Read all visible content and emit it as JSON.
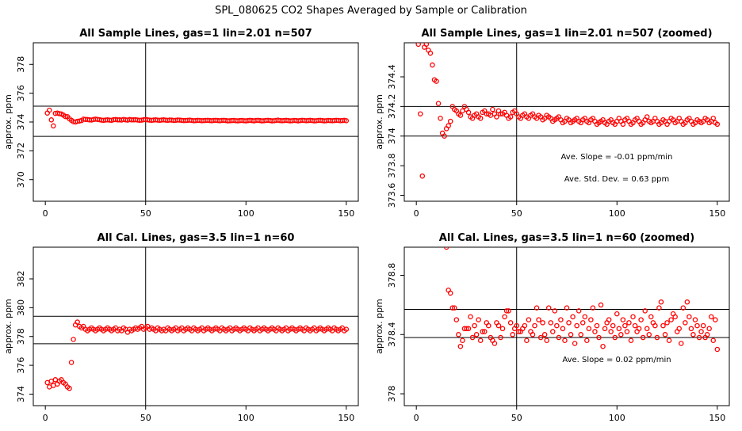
{
  "suptitle": "SPL_080625  CO2 Shapes Averaged by Sample or Calibration",
  "colors": {
    "points": "#ff0000",
    "lines": "#000000",
    "text": "#000000"
  },
  "chart_data": [
    {
      "type": "scatter",
      "title": "All Sample Lines, gas=1 lin=2.01 n=507",
      "xlabel": "",
      "ylabel": "approx. ppm",
      "xlim": [
        -6,
        156
      ],
      "ylim": [
        368.5,
        379.5
      ],
      "xticks": [
        0,
        50,
        100,
        150
      ],
      "yticks": [
        370,
        372,
        374,
        376,
        378
      ],
      "hlines": [
        373,
        375.1
      ],
      "vlines": [
        50
      ],
      "annotations": [],
      "x": [
        1,
        2,
        3,
        4,
        5,
        6,
        7,
        8,
        9,
        10,
        11,
        12,
        13,
        14,
        15,
        16,
        17,
        18,
        19,
        20,
        21,
        22,
        23,
        24,
        25,
        26,
        27,
        28,
        29,
        30,
        31,
        32,
        33,
        34,
        35,
        36,
        37,
        38,
        39,
        40,
        41,
        42,
        43,
        44,
        45,
        46,
        47,
        48,
        49,
        50,
        51,
        52,
        53,
        54,
        55,
        56,
        57,
        58,
        59,
        60,
        61,
        62,
        63,
        64,
        65,
        66,
        67,
        68,
        69,
        70,
        71,
        72,
        73,
        74,
        75,
        76,
        77,
        78,
        79,
        80,
        81,
        82,
        83,
        84,
        85,
        86,
        87,
        88,
        89,
        90,
        91,
        92,
        93,
        94,
        95,
        96,
        97,
        98,
        99,
        100,
        101,
        102,
        103,
        104,
        105,
        106,
        107,
        108,
        109,
        110,
        111,
        112,
        113,
        114,
        115,
        116,
        117,
        118,
        119,
        120,
        121,
        122,
        123,
        124,
        125,
        126,
        127,
        128,
        129,
        130,
        131,
        132,
        133,
        134,
        135,
        136,
        137,
        138,
        139,
        140,
        141,
        142,
        143,
        144,
        145,
        146,
        147,
        148,
        149,
        150
      ],
      "y": [
        374.62,
        374.82,
        374.15,
        373.73,
        374.6,
        374.62,
        374.58,
        374.56,
        374.48,
        374.38,
        374.37,
        374.22,
        374.12,
        374.02,
        374.0,
        374.05,
        374.07,
        374.1,
        374.2,
        374.18,
        374.17,
        374.15,
        374.14,
        374.17,
        374.2,
        374.18,
        374.16,
        374.13,
        374.12,
        374.14,
        374.15,
        374.13,
        374.12,
        374.16,
        374.17,
        374.15,
        374.15,
        374.14,
        374.18,
        374.15,
        374.13,
        374.17,
        374.15,
        374.15,
        374.16,
        374.14,
        374.12,
        374.13,
        374.16,
        374.17,
        374.15,
        374.13,
        374.12,
        374.14,
        374.15,
        374.13,
        374.12,
        374.14,
        374.15,
        374.13,
        374.12,
        374.14,
        374.13,
        374.11,
        374.12,
        374.14,
        374.13,
        374.12,
        374.1,
        374.11,
        374.12,
        374.13,
        374.11,
        374.09,
        374.1,
        374.12,
        374.11,
        374.09,
        374.1,
        374.11,
        374.12,
        374.1,
        374.09,
        374.11,
        374.12,
        374.1,
        374.09,
        374.11,
        374.12,
        374.1,
        374.08,
        374.09,
        374.1,
        374.11,
        374.09,
        374.08,
        374.1,
        374.11,
        374.09,
        374.08,
        374.1,
        374.12,
        374.1,
        374.08,
        374.11,
        374.12,
        374.1,
        374.08,
        374.09,
        374.11,
        374.12,
        374.1,
        374.08,
        374.09,
        374.11,
        374.13,
        374.1,
        374.09,
        374.1,
        374.12,
        374.1,
        374.08,
        374.09,
        374.11,
        374.1,
        374.08,
        374.1,
        374.12,
        374.11,
        374.09,
        374.1,
        374.12,
        374.1,
        374.08,
        374.09,
        374.11,
        374.12,
        374.1,
        374.08,
        374.09,
        374.11,
        374.1,
        374.09,
        374.1,
        374.12,
        374.11,
        374.09,
        374.1,
        374.12,
        374.09
      ]
    },
    {
      "type": "scatter",
      "title": "All Sample Lines, gas=1 lin=2.01 n=507 (zoomed)",
      "xlabel": "",
      "ylabel": "approx. ppm",
      "xlim": [
        -6,
        156
      ],
      "ylim": [
        373.56,
        374.63
      ],
      "xticks": [
        0,
        50,
        100,
        150
      ],
      "yticks": [
        373.6,
        373.8,
        374.0,
        374.2,
        374.4
      ],
      "hlines": [
        374.0,
        374.2
      ],
      "vlines": [
        50
      ],
      "annotations": [
        "Ave. Slope =  -0.01  ppm/min",
        "Ave. Std. Dev. =  0.63  ppm"
      ],
      "x": [
        1,
        2,
        3,
        4,
        5,
        6,
        7,
        8,
        9,
        10,
        11,
        12,
        13,
        14,
        15,
        16,
        17,
        18,
        19,
        20,
        21,
        22,
        23,
        24,
        25,
        26,
        27,
        28,
        29,
        30,
        31,
        32,
        33,
        34,
        35,
        36,
        37,
        38,
        39,
        40,
        41,
        42,
        43,
        44,
        45,
        46,
        47,
        48,
        49,
        50,
        51,
        52,
        53,
        54,
        55,
        56,
        57,
        58,
        59,
        60,
        61,
        62,
        63,
        64,
        65,
        66,
        67,
        68,
        69,
        70,
        71,
        72,
        73,
        74,
        75,
        76,
        77,
        78,
        79,
        80,
        81,
        82,
        83,
        84,
        85,
        86,
        87,
        88,
        89,
        90,
        91,
        92,
        93,
        94,
        95,
        96,
        97,
        98,
        99,
        100,
        101,
        102,
        103,
        104,
        105,
        106,
        107,
        108,
        109,
        110,
        111,
        112,
        113,
        114,
        115,
        116,
        117,
        118,
        119,
        120,
        121,
        122,
        123,
        124,
        125,
        126,
        127,
        128,
        129,
        130,
        131,
        132,
        133,
        134,
        135,
        136,
        137,
        138,
        139,
        140,
        141,
        142,
        143,
        144,
        145,
        146,
        147,
        148,
        149,
        150
      ],
      "y": [
        374.62,
        374.15,
        373.73,
        374.6,
        374.62,
        374.58,
        374.56,
        374.48,
        374.38,
        374.37,
        374.22,
        374.12,
        374.02,
        374.0,
        374.05,
        374.07,
        374.1,
        374.2,
        374.18,
        374.17,
        374.15,
        374.14,
        374.17,
        374.2,
        374.18,
        374.16,
        374.13,
        374.12,
        374.14,
        374.15,
        374.13,
        374.12,
        374.16,
        374.17,
        374.15,
        374.15,
        374.14,
        374.18,
        374.15,
        374.13,
        374.17,
        374.15,
        374.15,
        374.16,
        374.14,
        374.12,
        374.13,
        374.16,
        374.17,
        374.15,
        374.13,
        374.12,
        374.14,
        374.15,
        374.13,
        374.12,
        374.14,
        374.15,
        374.13,
        374.12,
        374.14,
        374.13,
        374.11,
        374.12,
        374.14,
        374.13,
        374.12,
        374.1,
        374.11,
        374.12,
        374.13,
        374.11,
        374.09,
        374.1,
        374.12,
        374.11,
        374.09,
        374.1,
        374.11,
        374.12,
        374.1,
        374.09,
        374.11,
        374.12,
        374.1,
        374.09,
        374.11,
        374.12,
        374.1,
        374.08,
        374.09,
        374.1,
        374.11,
        374.09,
        374.08,
        374.1,
        374.11,
        374.09,
        374.08,
        374.1,
        374.12,
        374.1,
        374.08,
        374.11,
        374.12,
        374.1,
        374.08,
        374.09,
        374.11,
        374.12,
        374.1,
        374.08,
        374.09,
        374.11,
        374.13,
        374.1,
        374.09,
        374.1,
        374.12,
        374.1,
        374.08,
        374.09,
        374.11,
        374.1,
        374.08,
        374.1,
        374.12,
        374.11,
        374.09,
        374.1,
        374.12,
        374.1,
        374.08,
        374.09,
        374.11,
        374.12,
        374.1,
        374.08,
        374.09,
        374.11,
        374.1,
        374.09,
        374.1,
        374.12,
        374.11,
        374.09,
        374.1,
        374.12,
        374.09,
        374.08
      ]
    },
    {
      "type": "scatter",
      "title": "All Cal. Lines, gas=3.5 lin=1 n=60",
      "xlabel": "",
      "ylabel": "approx. ppm",
      "xlim": [
        -6,
        156
      ],
      "ylim": [
        373.2,
        384.2
      ],
      "xticks": [
        0,
        50,
        100,
        150
      ],
      "yticks": [
        374,
        376,
        378,
        380,
        382
      ],
      "hlines": [
        377.5,
        379.4
      ],
      "vlines": [
        50
      ],
      "annotations": [],
      "x": [
        1,
        2,
        3,
        4,
        5,
        6,
        7,
        8,
        9,
        10,
        11,
        12,
        13,
        14,
        15,
        16,
        17,
        18,
        19,
        20,
        21,
        22,
        23,
        24,
        25,
        26,
        27,
        28,
        29,
        30,
        31,
        32,
        33,
        34,
        35,
        36,
        37,
        38,
        39,
        40,
        41,
        42,
        43,
        44,
        45,
        46,
        47,
        48,
        49,
        50,
        51,
        52,
        53,
        54,
        55,
        56,
        57,
        58,
        59,
        60,
        61,
        62,
        63,
        64,
        65,
        66,
        67,
        68,
        69,
        70,
        71,
        72,
        73,
        74,
        75,
        76,
        77,
        78,
        79,
        80,
        81,
        82,
        83,
        84,
        85,
        86,
        87,
        88,
        89,
        90,
        91,
        92,
        93,
        94,
        95,
        96,
        97,
        98,
        99,
        100,
        101,
        102,
        103,
        104,
        105,
        106,
        107,
        108,
        109,
        110,
        111,
        112,
        113,
        114,
        115,
        116,
        117,
        118,
        119,
        120,
        121,
        122,
        123,
        124,
        125,
        126,
        127,
        128,
        129,
        130,
        131,
        132,
        133,
        134,
        135,
        136,
        137,
        138,
        139,
        140,
        141,
        142,
        143,
        144,
        145,
        146,
        147,
        148,
        149,
        150
      ],
      "y": [
        374.8,
        374.5,
        374.9,
        374.6,
        375.0,
        374.7,
        374.9,
        375.0,
        374.8,
        374.7,
        374.5,
        374.4,
        376.2,
        377.8,
        378.8,
        379.0,
        378.7,
        378.6,
        378.7,
        378.5,
        378.4,
        378.5,
        378.6,
        378.5,
        378.4,
        378.5,
        378.6,
        378.5,
        378.4,
        378.5,
        378.6,
        378.5,
        378.4,
        378.5,
        378.6,
        378.4,
        378.5,
        378.4,
        378.6,
        378.5,
        378.3,
        378.5,
        378.4,
        378.5,
        378.6,
        378.5,
        378.6,
        378.7,
        378.5,
        378.6,
        378.7,
        378.5,
        378.6,
        378.5,
        378.4,
        378.6,
        378.5,
        378.4,
        378.5,
        378.4,
        378.6,
        378.5,
        378.4,
        378.5,
        378.6,
        378.4,
        378.5,
        378.6,
        378.4,
        378.5,
        378.6,
        378.5,
        378.4,
        378.6,
        378.5,
        378.4,
        378.5,
        378.6,
        378.4,
        378.5,
        378.6,
        378.5,
        378.4,
        378.5,
        378.6,
        378.5,
        378.4,
        378.6,
        378.5,
        378.4,
        378.5,
        378.6,
        378.4,
        378.5,
        378.6,
        378.5,
        378.4,
        378.5,
        378.6,
        378.5,
        378.4,
        378.6,
        378.5,
        378.4,
        378.5,
        378.6,
        378.4,
        378.5,
        378.6,
        378.5,
        378.4,
        378.5,
        378.6,
        378.5,
        378.4,
        378.6,
        378.5,
        378.4,
        378.5,
        378.6,
        378.4,
        378.5,
        378.6,
        378.5,
        378.4,
        378.5,
        378.6,
        378.5,
        378.4,
        378.6,
        378.5,
        378.4,
        378.5,
        378.6,
        378.4,
        378.5,
        378.6,
        378.5,
        378.4,
        378.5,
        378.6,
        378.5,
        378.4,
        378.6,
        378.5,
        378.4,
        378.5,
        378.6,
        378.4,
        378.5
      ]
    },
    {
      "type": "scatter",
      "title": "All Cal. Lines, gas=3.5 lin=1 n=60 (zoomed)",
      "xlabel": "",
      "ylabel": "approx. ppm",
      "xlim": [
        -6,
        156
      ],
      "ylim": [
        377.92,
        378.99
      ],
      "xticks": [
        0,
        50,
        100,
        150
      ],
      "yticks": [
        378.0,
        378.4,
        378.8
      ],
      "hlines": [
        378.38,
        378.57
      ],
      "vlines": [
        50
      ],
      "annotations": [
        "Ave. Slope =  0.02  ppm/min"
      ],
      "x": [
        15,
        16,
        17,
        18,
        19,
        20,
        21,
        22,
        23,
        24,
        25,
        26,
        27,
        28,
        29,
        30,
        31,
        32,
        33,
        34,
        35,
        36,
        37,
        38,
        39,
        40,
        41,
        42,
        43,
        44,
        45,
        46,
        47,
        48,
        49,
        50,
        51,
        52,
        53,
        54,
        55,
        56,
        57,
        58,
        59,
        60,
        61,
        62,
        63,
        64,
        65,
        66,
        67,
        68,
        69,
        70,
        71,
        72,
        73,
        74,
        75,
        76,
        77,
        78,
        79,
        80,
        81,
        82,
        83,
        84,
        85,
        86,
        87,
        88,
        89,
        90,
        91,
        92,
        93,
        94,
        95,
        96,
        97,
        98,
        99,
        100,
        101,
        102,
        103,
        104,
        105,
        106,
        107,
        108,
        109,
        110,
        111,
        112,
        113,
        114,
        115,
        116,
        117,
        118,
        119,
        120,
        121,
        122,
        123,
        124,
        125,
        126,
        127,
        128,
        129,
        130,
        131,
        132,
        133,
        134,
        135,
        136,
        137,
        138,
        139,
        140,
        141,
        142,
        143,
        144,
        145,
        146,
        147,
        148,
        149,
        150
      ],
      "y": [
        378.99,
        378.7,
        378.68,
        378.58,
        378.58,
        378.5,
        378.4,
        378.32,
        378.36,
        378.44,
        378.44,
        378.44,
        378.52,
        378.38,
        378.46,
        378.4,
        378.5,
        378.36,
        378.42,
        378.42,
        378.48,
        378.46,
        378.38,
        378.36,
        378.34,
        378.48,
        378.46,
        378.38,
        378.44,
        378.52,
        378.56,
        378.56,
        378.48,
        378.4,
        378.44,
        378.46,
        378.42,
        378.42,
        378.44,
        378.46,
        378.36,
        378.5,
        378.42,
        378.4,
        378.46,
        378.58,
        378.5,
        378.38,
        378.48,
        378.4,
        378.36,
        378.58,
        378.48,
        378.42,
        378.56,
        378.46,
        378.38,
        378.5,
        378.44,
        378.36,
        378.58,
        378.48,
        378.4,
        378.52,
        378.34,
        378.46,
        378.56,
        378.4,
        378.48,
        378.52,
        378.36,
        378.44,
        378.5,
        378.58,
        378.42,
        378.46,
        378.38,
        378.6,
        378.32,
        378.44,
        378.48,
        378.5,
        378.42,
        378.46,
        378.38,
        378.54,
        378.44,
        378.4,
        378.5,
        378.46,
        378.42,
        378.48,
        378.36,
        378.52,
        378.46,
        378.42,
        378.44,
        378.5,
        378.38,
        378.56,
        378.44,
        378.4,
        378.52,
        378.48,
        378.46,
        378.38,
        378.58,
        378.62,
        378.46,
        378.4,
        378.48,
        378.36,
        378.5,
        378.54,
        378.52,
        378.42,
        378.44,
        378.34,
        378.58,
        378.48,
        378.62,
        378.52,
        378.44,
        378.4,
        378.5,
        378.46,
        378.38,
        378.42,
        378.46,
        378.38,
        378.4,
        378.44,
        378.52,
        378.36,
        378.5,
        378.3
      ]
    }
  ]
}
